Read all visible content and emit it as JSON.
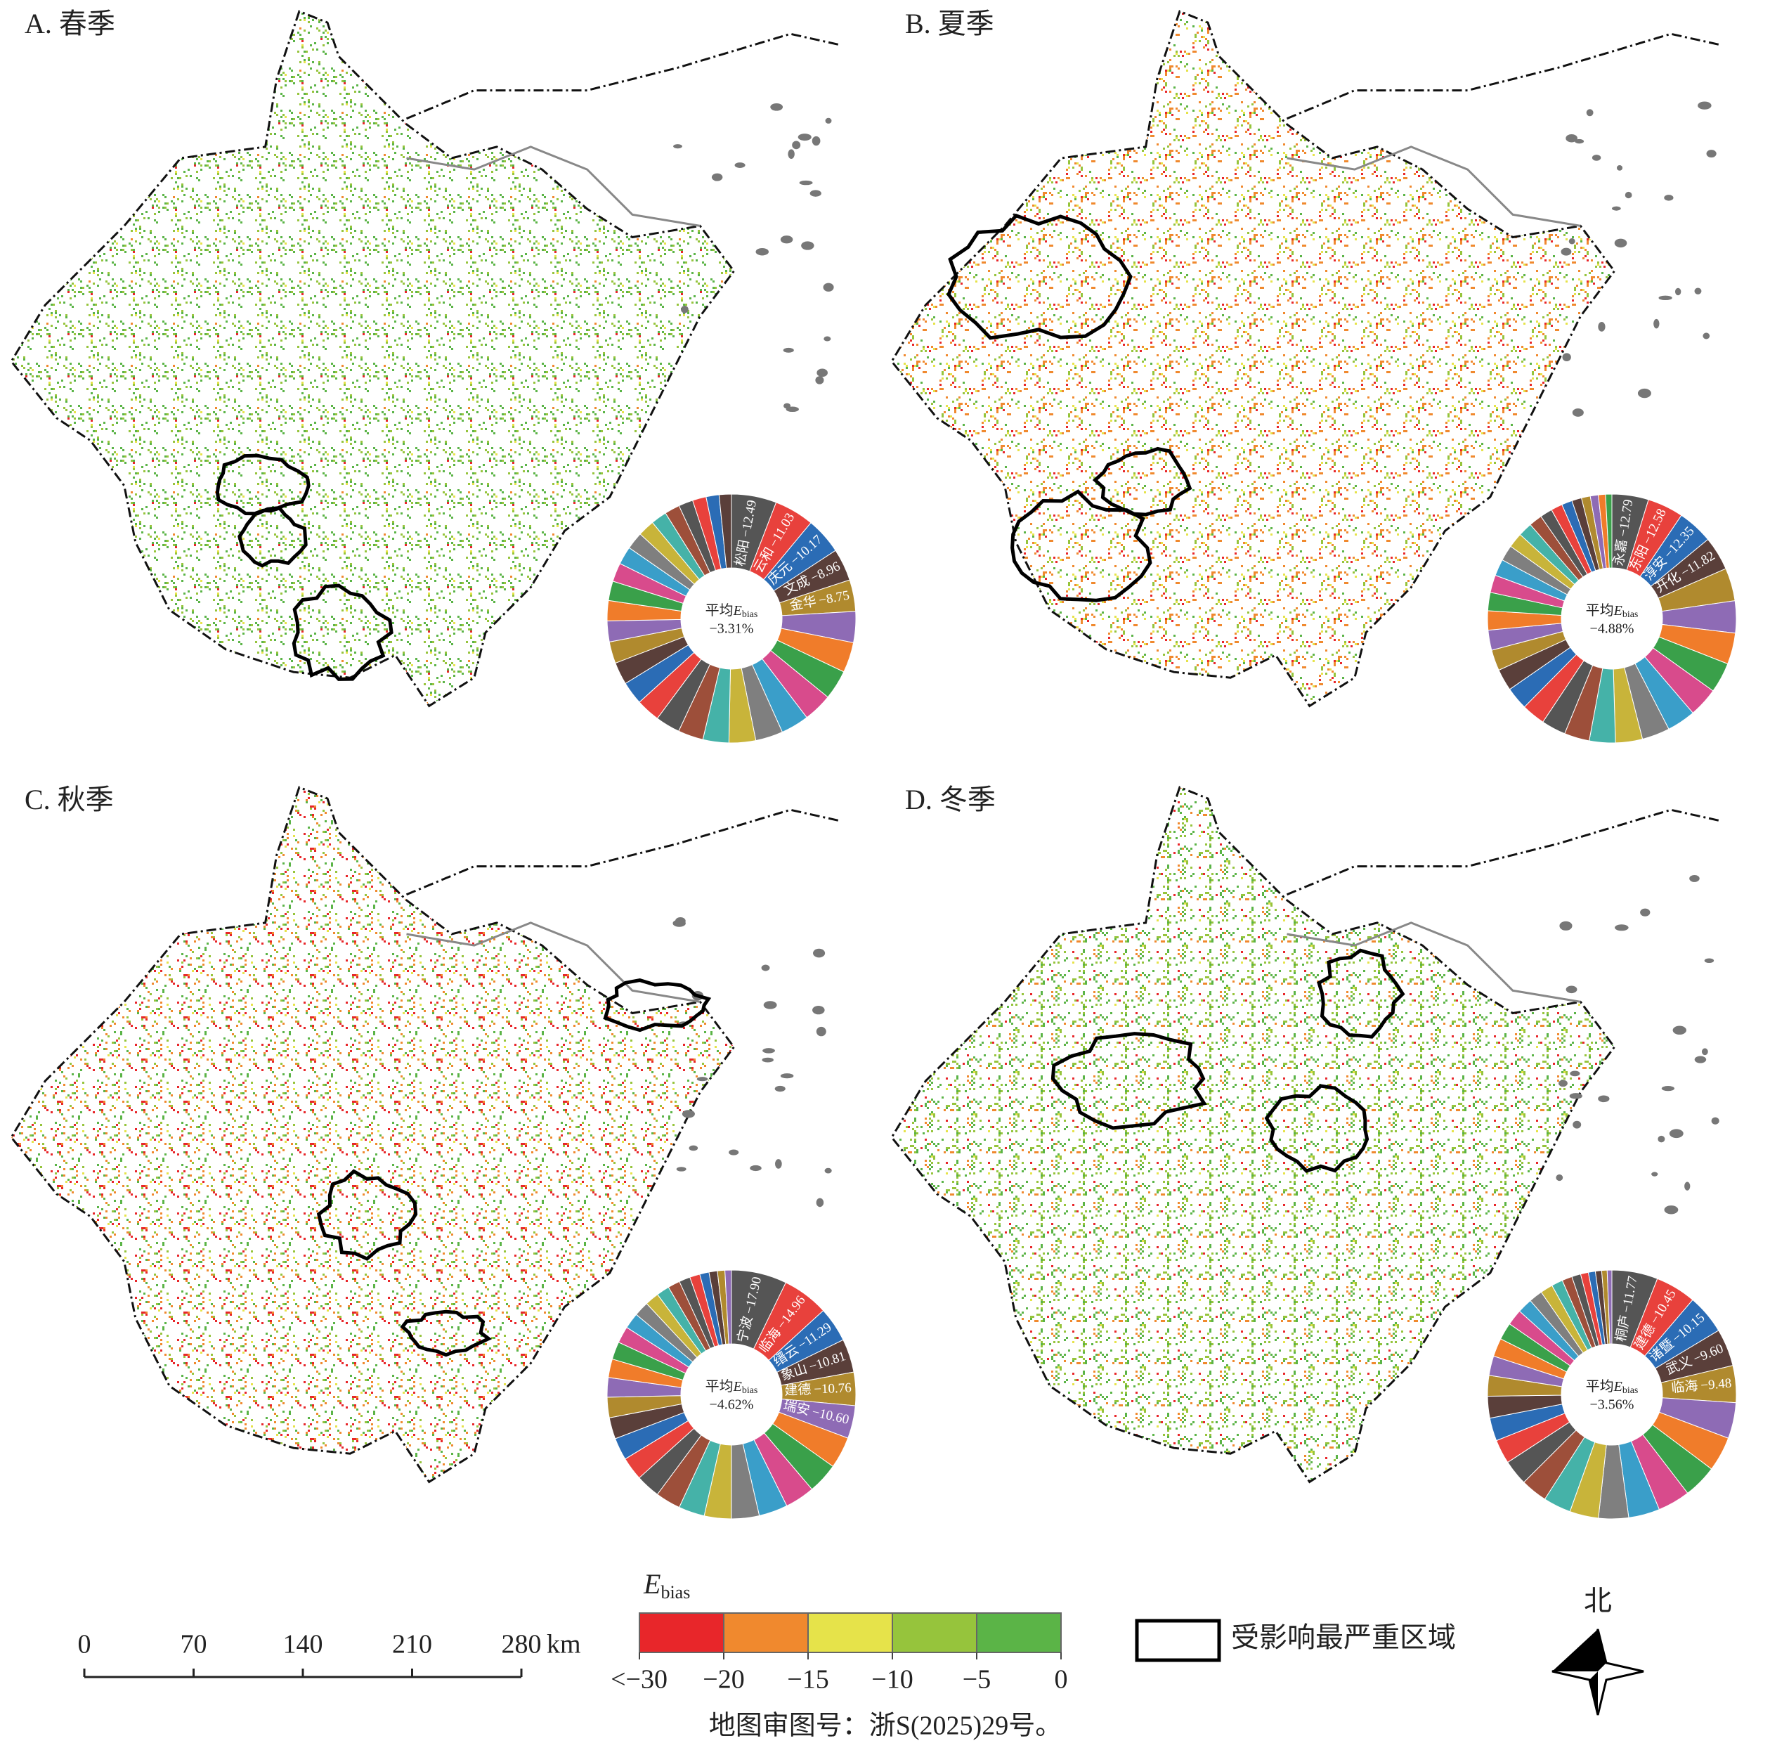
{
  "chart_data": [
    {
      "type": "pie",
      "title": "A. 春季",
      "categories": [
        "松阳",
        "云和",
        "庆元",
        "文成",
        "金华",
        null,
        null,
        null,
        null,
        null,
        null,
        null,
        null,
        null,
        null,
        null,
        null,
        null,
        null,
        null,
        null,
        null,
        null,
        null,
        null,
        null,
        null,
        null,
        null,
        null,
        null,
        null
      ],
      "values": [
        -12.49,
        -11.03,
        -10.17,
        -8.96,
        -8.75,
        -8.6,
        -8.4,
        -8.2,
        -8.0,
        -7.8,
        -7.6,
        -7.4,
        -7.2,
        -7.0,
        -6.8,
        -6.6,
        -6.4,
        -6.2,
        -6.0,
        -5.8,
        -5.6,
        -5.4,
        -5.2,
        -5.0,
        -4.8,
        -4.6,
        -4.4,
        -4.2,
        -4.0,
        -3.8,
        -3.6,
        -3.4
      ],
      "value_labels": [
        "−12.49",
        "−11.03",
        "−10.17",
        "−8.96",
        "−8.75",
        null,
        null,
        null,
        null,
        null,
        null,
        null,
        null,
        null,
        null,
        null,
        null,
        null,
        null,
        null,
        null,
        null,
        null,
        null,
        null,
        null,
        null,
        null,
        null,
        null,
        null,
        null
      ],
      "mean": -3.31,
      "mean_label": "−3.31%"
    },
    {
      "type": "pie",
      "title": "B. 夏季",
      "categories": [
        "永嘉",
        "东阳",
        "淳安",
        "开化",
        null,
        null,
        null,
        null,
        null,
        null,
        null,
        null,
        null,
        null,
        null,
        null,
        null,
        null,
        null,
        null,
        null,
        null,
        null,
        null,
        null,
        null,
        null,
        null,
        null,
        null,
        null,
        null,
        null,
        null,
        null,
        null
      ],
      "values": [
        -12.79,
        -12.58,
        -12.35,
        -11.82,
        -11.5,
        -11.2,
        -10.9,
        -10.6,
        -10.3,
        -10.0,
        -9.7,
        -9.4,
        -9.1,
        -8.8,
        -8.5,
        -8.2,
        -7.9,
        -7.6,
        -7.3,
        -7.0,
        -6.7,
        -6.4,
        -6.1,
        -5.8,
        -5.5,
        -5.2,
        -4.9,
        -4.6,
        -4.3,
        -4.0,
        -3.7,
        -3.4,
        -3.1,
        -2.8,
        -2.5,
        -2.2
      ],
      "value_labels": [
        "−12.79",
        "−12.58",
        "−12.35",
        "−11.82",
        null,
        null,
        null,
        null,
        null,
        null,
        null,
        null,
        null,
        null,
        null,
        null,
        null,
        null,
        null,
        null,
        null,
        null,
        null,
        null,
        null,
        null,
        null,
        null,
        null,
        null,
        null,
        null,
        null,
        null,
        null,
        null
      ],
      "mean": -4.88,
      "mean_label": "−4.88%"
    },
    {
      "type": "pie",
      "title": "C. 秋季",
      "categories": [
        "宁波",
        "临海",
        "缙云",
        "象山",
        "建德",
        "瑞安",
        null,
        null,
        null,
        null,
        null,
        null,
        null,
        null,
        null,
        null,
        null,
        null,
        null,
        null,
        null,
        null,
        null,
        null,
        null,
        null,
        null,
        null,
        null,
        null,
        null,
        null,
        null,
        null
      ],
      "values": [
        -17.9,
        -14.96,
        -11.29,
        -10.81,
        -10.76,
        -10.6,
        -10.2,
        -9.9,
        -9.6,
        -9.3,
        -9.0,
        -8.7,
        -8.4,
        -8.1,
        -7.8,
        -7.5,
        -7.2,
        -6.9,
        -6.6,
        -6.3,
        -6.0,
        -5.7,
        -5.4,
        -5.1,
        -4.8,
        -4.5,
        -4.2,
        -3.9,
        -3.6,
        -3.3,
        -3.0,
        -2.7,
        -2.4,
        -2.1
      ],
      "value_labels": [
        "−17.90",
        "−14.96",
        "−11.29",
        "−10.81",
        "−10.76",
        "−10.60",
        null,
        null,
        null,
        null,
        null,
        null,
        null,
        null,
        null,
        null,
        null,
        null,
        null,
        null,
        null,
        null,
        null,
        null,
        null,
        null,
        null,
        null,
        null,
        null,
        null,
        null,
        null,
        null
      ],
      "mean": -4.62,
      "mean_label": "−4.62%"
    },
    {
      "type": "pie",
      "title": "D. 冬季",
      "categories": [
        "桐庐",
        "建德",
        "诸暨",
        "武义",
        "临海",
        null,
        null,
        null,
        null,
        null,
        null,
        null,
        null,
        null,
        null,
        null,
        null,
        null,
        null,
        null,
        null,
        null,
        null,
        null,
        null,
        null,
        null,
        null,
        null,
        null,
        null,
        null,
        null,
        null
      ],
      "values": [
        -11.77,
        -10.45,
        -10.15,
        -9.6,
        -9.48,
        -9.2,
        -8.9,
        -8.6,
        -8.3,
        -8.0,
        -7.7,
        -7.4,
        -7.1,
        -6.8,
        -6.5,
        -6.2,
        -5.9,
        -5.6,
        -5.3,
        -5.0,
        -4.7,
        -4.4,
        -4.1,
        -3.8,
        -3.5,
        -3.2,
        -2.9,
        -2.6,
        -2.3,
        -2.0,
        -1.8,
        -1.6,
        -1.4,
        -1.2
      ],
      "value_labels": [
        "−11.77",
        "−10.45",
        "−10.15",
        "−9.60",
        "−9.48",
        null,
        null,
        null,
        null,
        null,
        null,
        null,
        null,
        null,
        null,
        null,
        null,
        null,
        null,
        null,
        null,
        null,
        null,
        null,
        null,
        null,
        null,
        null,
        null,
        null,
        null,
        null,
        null,
        null
      ],
      "mean": -3.56,
      "mean_label": "−3.56%"
    }
  ],
  "center_title": "平均",
  "center_symbol": "E",
  "center_subscript": "bias",
  "segment_colors": [
    "#555555",
    "#e8413c",
    "#2b6cb5",
    "#5a3f3a",
    "#b08a2e",
    "#8e6bb5",
    "#f07c2a",
    "#3aa04a",
    "#d84b8c",
    "#3a9ec9",
    "#7f7f7f",
    "#c8b43a",
    "#45b2a8",
    "#9d4f3a"
  ],
  "legend": {
    "title_symbol": "E",
    "title_subscript": "bias",
    "ticks": [
      {
        "value": -30,
        "label": "<−30"
      },
      {
        "value": -20,
        "label": "−20"
      },
      {
        "value": -15,
        "label": "−15"
      },
      {
        "value": -10,
        "label": "−10"
      },
      {
        "value": -5,
        "label": "−5"
      },
      0
    ],
    "colors": [
      "#e8262a",
      "#f0892e",
      "#e6e34a",
      "#96c43c",
      "#5bb447"
    ],
    "region_label": "受影响最严重区域"
  },
  "scale_bar": {
    "ticks": [
      0,
      70,
      140,
      210,
      280
    ],
    "unit": "km"
  },
  "north": "北",
  "footer": "地图审图号：浙S(2025)29号。"
}
